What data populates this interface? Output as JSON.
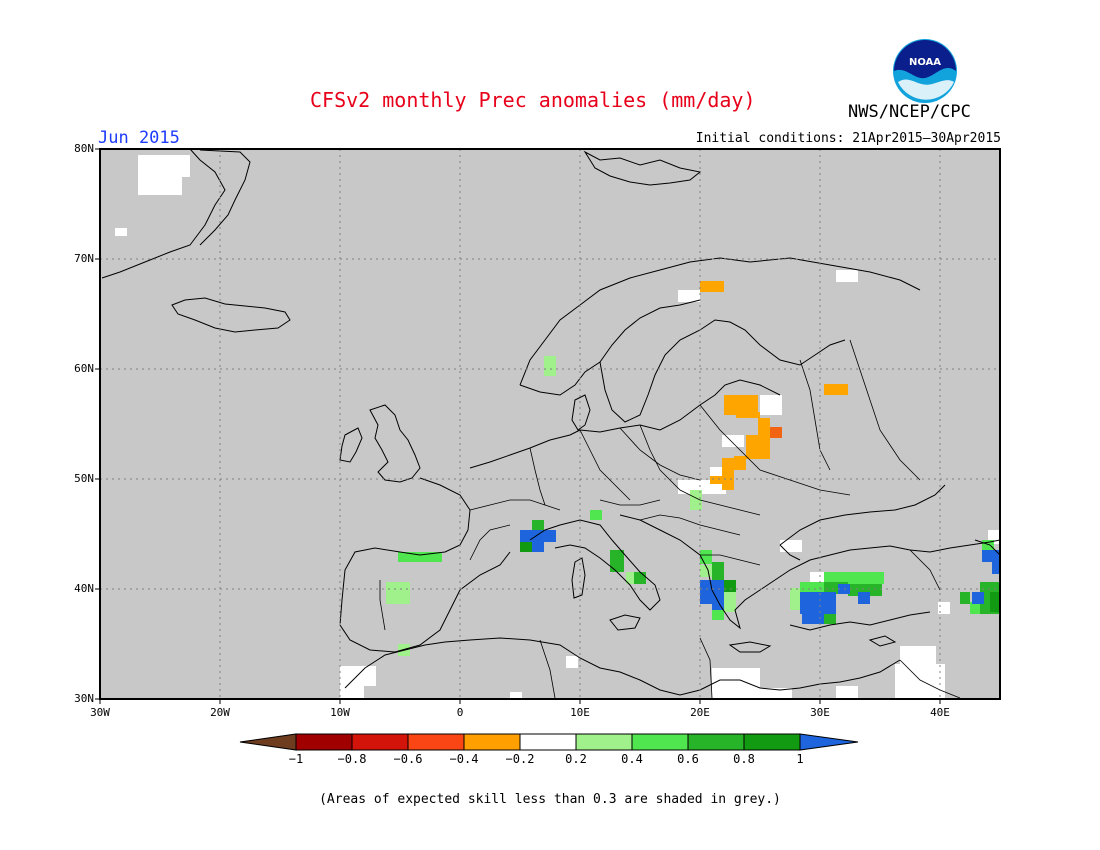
{
  "header": {
    "title": "CFSv2 monthly Prec anomalies (mm/day)",
    "period": "Jun 2015",
    "initial_conditions": "Initial conditions: 21Apr2015–30Apr2015",
    "agency": "NWS/NCEP/CPC",
    "logo_text": "NOAA"
  },
  "map": {
    "lat_labels": [
      "80N",
      "70N",
      "60N",
      "50N",
      "40N",
      "30N"
    ],
    "lon_labels": [
      "30W",
      "20W",
      "10W",
      "0",
      "10E",
      "20E",
      "30E",
      "40E"
    ],
    "background_color": "#c8c8c8",
    "grid": "dotted"
  },
  "colorbar": {
    "tick_labels": [
      "−1",
      "−0.8",
      "−0.6",
      "−0.4",
      "−0.2",
      "0.2",
      "0.4",
      "0.6",
      "0.8",
      "1"
    ],
    "colors": [
      "#a00000",
      "#e8281a",
      "#fa8c00",
      "#ffa500",
      "#ffffff",
      "#a0f08c",
      "#50e650",
      "#28b428",
      "#129b12"
    ],
    "under_color": "#6e3c1e",
    "over_color": "#1e64dc"
  },
  "footnote": "(Areas of expected skill less than 0.3 are shaded in grey.)"
}
